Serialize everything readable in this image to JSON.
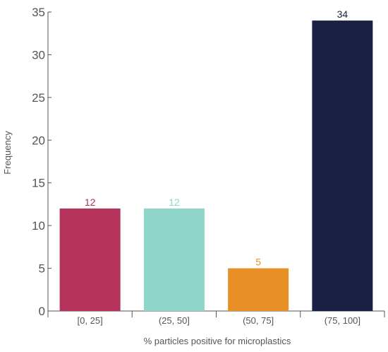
{
  "chart_data": {
    "type": "bar",
    "title": "",
    "xlabel": "% particles positive for microplastics",
    "ylabel": "Frequency",
    "categories": [
      "[0, 25]",
      "(25, 50]",
      "(50, 75]",
      "(75, 100]"
    ],
    "values": [
      12,
      12,
      5,
      34
    ],
    "data_labels": [
      "12",
      "12",
      "5",
      "34"
    ],
    "colors": [
      "#b5325a",
      "#8fd5c9",
      "#e88f26",
      "#1a2044"
    ],
    "ylim": [
      0,
      35
    ],
    "yticks": [
      0,
      5,
      10,
      15,
      20,
      25,
      30,
      35
    ],
    "grid": false,
    "legend": "none"
  }
}
